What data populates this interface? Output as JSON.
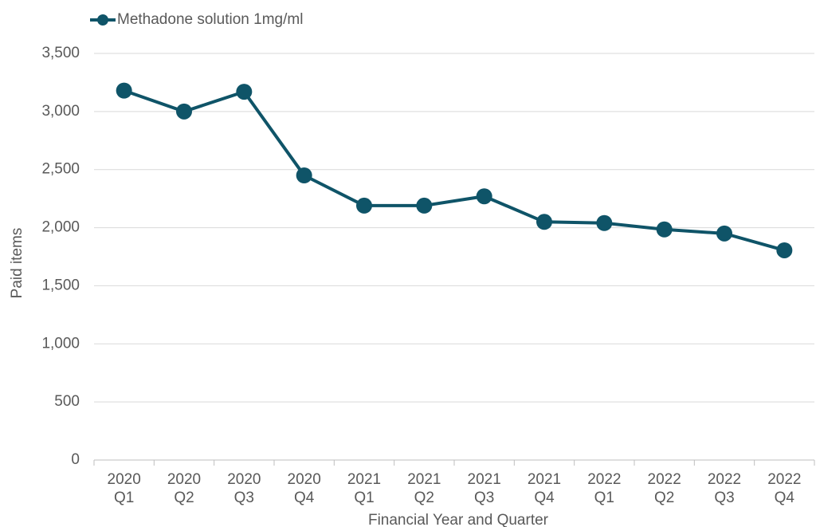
{
  "chart_data": {
    "type": "line",
    "x_label": "Financial Year and Quarter",
    "y_label": "Paid items",
    "categories": [
      "2020\nQ1",
      "2020\nQ2",
      "2020\nQ3",
      "2020\nQ4",
      "2021\nQ1",
      "2021\nQ2",
      "2021\nQ3",
      "2021\nQ4",
      "2022\nQ1",
      "2022\nQ2",
      "2022\nQ3",
      "2022\nQ4"
    ],
    "series": [
      {
        "name": "Methadone solution 1mg/ml",
        "color": "#0f5468",
        "values": [
          3180,
          3000,
          3170,
          2450,
          2190,
          2190,
          2270,
          2050,
          2040,
          1985,
          1950,
          1805
        ]
      }
    ],
    "ylim": [
      0,
      3500
    ],
    "yticks": [
      0,
      500,
      {
        "value": 1000,
        "label": "1,000"
      },
      {
        "value": 1500,
        "label": "1,500"
      },
      {
        "value": 2000,
        "label": "2,000"
      },
      {
        "value": 2500,
        "label": "2,500"
      },
      {
        "value": 3000,
        "label": "3,000"
      },
      {
        "value": 3500,
        "label": "3,500"
      }
    ],
    "grid": true,
    "legend": "top-left"
  }
}
